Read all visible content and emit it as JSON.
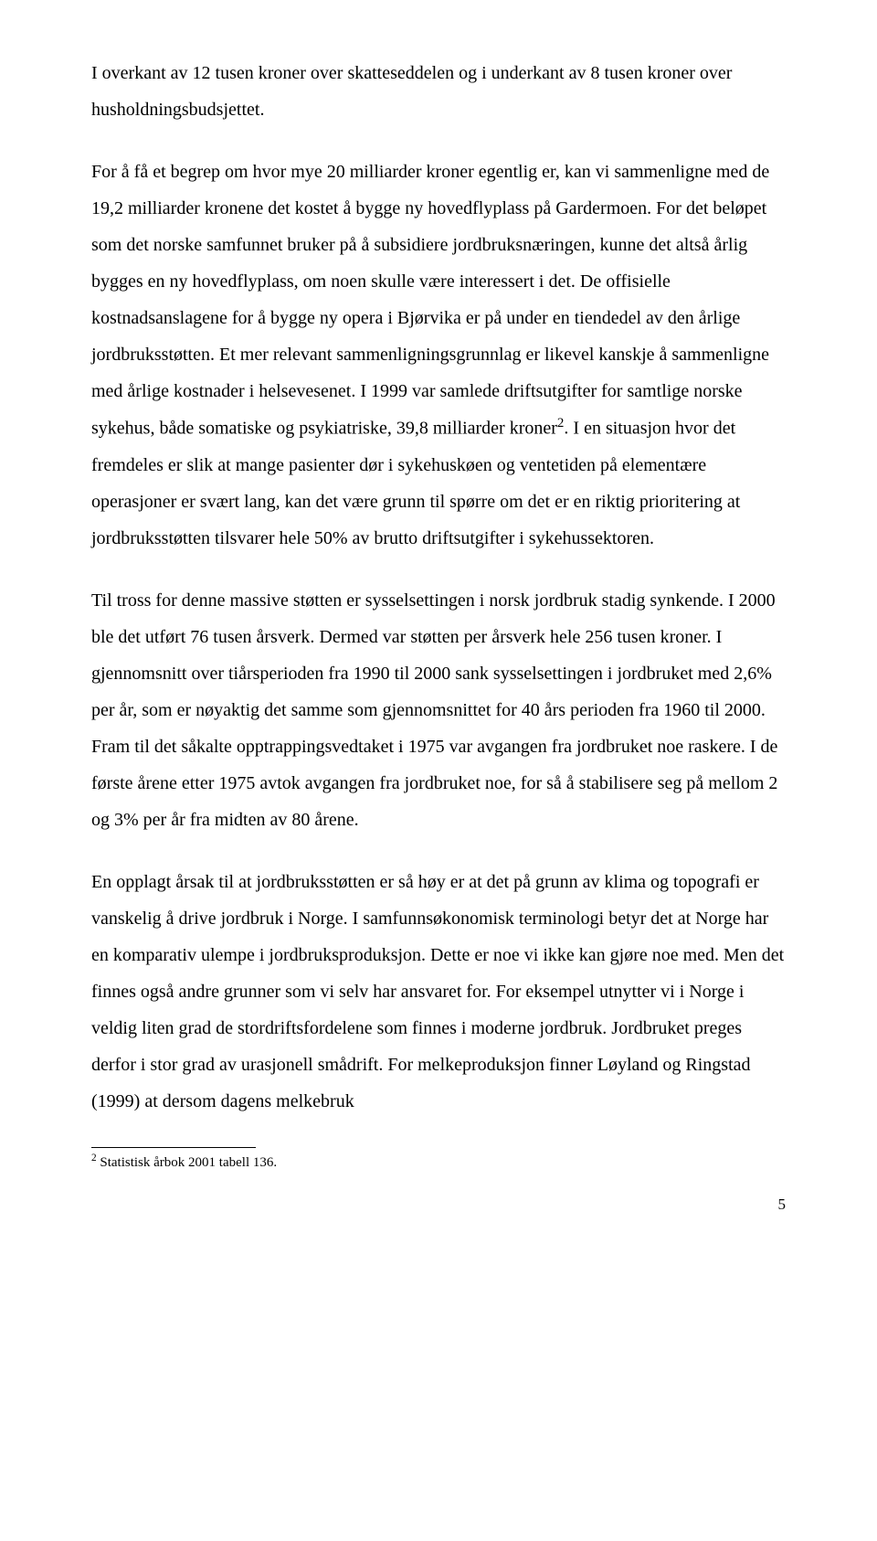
{
  "paragraphs": {
    "p1": "I overkant av 12 tusen kroner over skatteseddelen og i underkant av 8 tusen kroner over husholdningsbudsjettet.",
    "p2a": "For å få et begrep om hvor mye 20 milliarder kroner egentlig er, kan vi sammenligne med de 19,2 milliarder kronene det kostet å bygge ny hovedflyplass på Gardermoen. For det beløpet som det norske samfunnet bruker på å subsidiere jordbruksnæringen, kunne det altså årlig bygges en ny hovedflyplass, om noen skulle være interessert i det. De offisielle kostnadsanslagene for å bygge ny opera i Bjørvika er på under en tiendedel av den årlige jordbruksstøtten. Et mer relevant sammenligningsgrunnlag er likevel kanskje å sammenligne med årlige kostnader i helsevesenet. I 1999 var samlede driftsutgifter for samtlige norske sykehus, både somatiske og psykiatriske, 39,8 milliarder kroner",
    "p2b": ". I en situasjon hvor det fremdeles er slik at mange pasienter dør i sykehuskøen og ventetiden på elementære operasjoner er svært lang, kan det være grunn til spørre om det er en riktig prioritering at jordbruksstøtten tilsvarer hele 50% av brutto driftsutgifter i sykehussektoren.",
    "p3": "Til tross for denne massive støtten er sysselsettingen i norsk jordbruk stadig synkende. I 2000 ble det utført 76 tusen årsverk. Dermed var støtten per årsverk hele 256 tusen kroner. I gjennomsnitt over tiårsperioden fra 1990 til 2000 sank sysselsettingen i jordbruket med 2,6% per år, som er nøyaktig det samme som gjennomsnittet for 40 års perioden fra 1960 til 2000. Fram til det såkalte opptrappingsvedtaket i 1975 var avgangen fra jordbruket noe raskere. I de første årene etter 1975 avtok avgangen fra jordbruket noe, for så å stabilisere seg på mellom 2 og 3% per år fra midten av 80 årene.",
    "p4": "En opplagt årsak til at jordbruksstøtten er så høy er at det på grunn av klima og topografi er vanskelig å drive jordbruk i Norge. I samfunnsøkonomisk terminologi betyr det at Norge har en komparativ ulempe i jordbruksproduksjon. Dette er noe vi ikke kan gjøre noe med. Men det finnes også andre grunner som vi selv har ansvaret for. For eksempel utnytter vi i Norge i veldig liten grad de stordriftsfordelene som finnes i moderne jordbruk. Jordbruket preges derfor i stor grad av urasjonell smådrift. For melkeproduksjon finner Løyland og Ringstad (1999) at dersom dagens melkebruk"
  },
  "footnote": {
    "marker": "2",
    "text": " Statistisk årbok 2001 tabell 136."
  },
  "pageNumber": "5"
}
